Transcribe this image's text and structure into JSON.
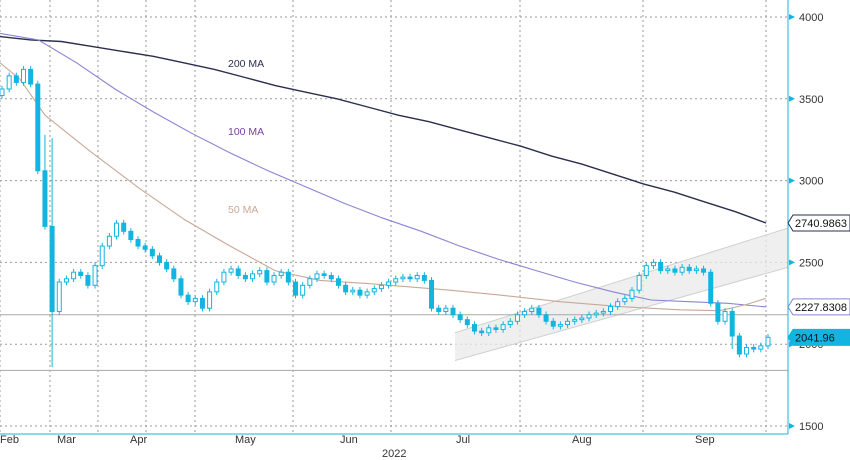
{
  "chart_data": {
    "type": "candlestick",
    "title": "",
    "xlabel": "2022",
    "ylabel": "",
    "ylim": [
      1500,
      4000
    ],
    "y_ticks": [
      1500,
      2000,
      2500,
      3000,
      3500,
      4000
    ],
    "y_tick_labels": [
      "1500",
      "2000",
      "2500",
      "3000",
      "3500",
      "4000"
    ],
    "x_ticks": [
      {
        "label": "Feb",
        "date": "2022-02-01"
      },
      {
        "label": "Mar",
        "date": "2022-03-01"
      },
      {
        "label": "Apr",
        "date": "2022-04-01"
      },
      {
        "label": "May",
        "date": "2022-05-01"
      },
      {
        "label": "Jun",
        "date": "2022-06-01"
      },
      {
        "label": "Jul",
        "date": "2022-07-01"
      },
      {
        "label": "Aug",
        "date": "2022-08-01"
      },
      {
        "label": "Sep",
        "date": "2022-09-01"
      }
    ],
    "year_label": "2022",
    "grid": true,
    "close_series": [
      3560,
      3640,
      3600,
      3680,
      3590,
      3060,
      2720,
      2200,
      2380,
      2400,
      2440,
      2420,
      2360,
      2480,
      2600,
      2660,
      2740,
      2690,
      2640,
      2600,
      2580,
      2540,
      2500,
      2460,
      2400,
      2300,
      2260,
      2280,
      2220,
      2320,
      2380,
      2440,
      2460,
      2420,
      2400,
      2430,
      2450,
      2380,
      2420,
      2440,
      2380,
      2300,
      2360,
      2400,
      2430,
      2420,
      2400,
      2360,
      2320,
      2330,
      2300,
      2320,
      2340,
      2360,
      2380,
      2400,
      2410,
      2400,
      2420,
      2390,
      2220,
      2200,
      2220,
      2180,
      2150,
      2120,
      2080,
      2070,
      2100,
      2090,
      2120,
      2140,
      2180,
      2200,
      2220,
      2180,
      2140,
      2110,
      2120,
      2140,
      2150,
      2160,
      2180,
      2190,
      2200,
      2230,
      2260,
      2280,
      2330,
      2420,
      2480,
      2500,
      2450,
      2460,
      2440,
      2470,
      2450,
      2460,
      2440,
      2250,
      2140,
      2200,
      2050,
      1940,
      1980,
      1970,
      1990,
      2042
    ],
    "series": [
      {
        "name": "200 MA",
        "color": "#2b2f4e",
        "values": [
          3880,
          3860,
          3850,
          3820,
          3790,
          3760,
          3720,
          3680,
          3630,
          3580,
          3540,
          3500,
          3450,
          3400,
          3360,
          3310,
          3260,
          3210,
          3150,
          3100,
          3040,
          2980,
          2930,
          2870,
          2810,
          2741
        ]
      },
      {
        "name": "100 MA",
        "color": "#8a84d4",
        "values": [
          3900,
          3860,
          3720,
          3560,
          3420,
          3290,
          3170,
          3060,
          2960,
          2860,
          2770,
          2690,
          2600,
          2520,
          2450,
          2380,
          2320,
          2270,
          2260,
          2250,
          2228
        ]
      },
      {
        "name": "50 MA",
        "color": "#c9a896",
        "values": [
          3720,
          3620,
          3400,
          3180,
          2950,
          2760,
          2600,
          2450,
          2390,
          2370,
          2350,
          2330,
          2300,
          2260,
          2230,
          2210,
          2205,
          2240,
          2280
        ]
      }
    ],
    "horizontal_lines": [
      2180,
      1840
    ],
    "channel": {
      "lower_from": 1900,
      "lower_to": 2470,
      "upper_from": 2070,
      "upper_to": 2710
    },
    "last_values": [
      {
        "label": "2740.9863",
        "value": 2740.9863,
        "series": "200 MA"
      },
      {
        "label": "2227.8308",
        "value": 2227.8308,
        "series": "100 MA"
      },
      {
        "label": "2041.96",
        "value": 2041.96,
        "series": "price"
      }
    ],
    "annotations": [
      {
        "text": "200 MA",
        "series": "200 MA"
      },
      {
        "text": "100 MA",
        "series": "100 MA"
      },
      {
        "text": "50 MA",
        "series": "50 MA"
      }
    ],
    "colors": {
      "candle": "#12b5e0",
      "grid": "#9a9a9a",
      "axis": "#12b5e0",
      "channel_fill": "#e9e9e9",
      "channel_line": "#cfcfcf"
    }
  }
}
